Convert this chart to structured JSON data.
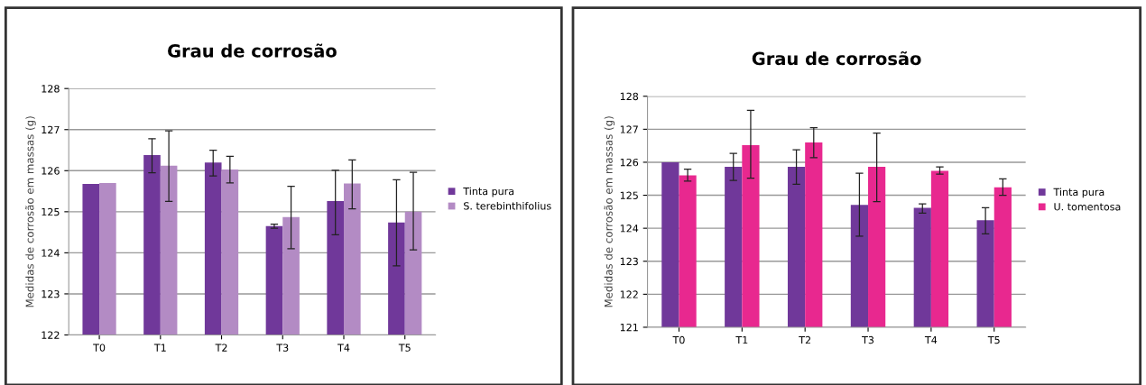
{
  "chart_data": [
    {
      "type": "bar",
      "title": "Grau de corrosão",
      "ylabel": "Medidas de corrosão em massas (g)",
      "categories": [
        "T0",
        "T1",
        "T2",
        "T3",
        "T4",
        "T5"
      ],
      "ylim": [
        122,
        128
      ],
      "yticks": [
        122,
        123,
        124,
        125,
        126,
        127,
        128
      ],
      "grid": "y",
      "legend": "right",
      "series": [
        {
          "name": "Tinta pura",
          "color": "#70389a",
          "values": [
            125.68,
            126.38,
            126.2,
            124.65,
            125.26,
            124.74
          ],
          "errors": [
            null,
            [
              125.95,
              126.78
            ],
            [
              125.87,
              126.5
            ],
            [
              124.6,
              124.7
            ],
            [
              124.44,
              126.01
            ],
            [
              123.68,
              125.78
            ]
          ]
        },
        {
          "name": "S. terebinthifolius",
          "color": "#b38bc4",
          "values": [
            125.7,
            126.12,
            126.03,
            124.87,
            125.69,
            125.0
          ],
          "errors": [
            null,
            [
              125.25,
              126.97
            ],
            [
              125.7,
              126.35
            ],
            [
              124.1,
              125.62
            ],
            [
              125.07,
              126.26
            ],
            [
              124.07,
              125.96
            ]
          ]
        }
      ]
    },
    {
      "type": "bar",
      "title": "Grau de corrosão",
      "ylabel": "Medidas de corrosão em massas (g)",
      "categories": [
        "T0",
        "T1",
        "T2",
        "T3",
        "T4",
        "T5"
      ],
      "ylim": [
        121,
        128
      ],
      "yticks": [
        121,
        122,
        123,
        124,
        125,
        126,
        127,
        128
      ],
      "grid": "y",
      "legend": "right",
      "series": [
        {
          "name": "Tinta pura",
          "color": "#70389a",
          "values": [
            126.0,
            125.86,
            125.86,
            124.71,
            124.62,
            124.24
          ],
          "errors": [
            null,
            [
              125.45,
              126.27
            ],
            [
              125.33,
              126.38
            ],
            [
              123.76,
              125.67
            ],
            [
              124.46,
              124.74
            ],
            [
              123.83,
              124.62
            ]
          ]
        },
        {
          "name": "U. tomentosa",
          "color": "#e8288f",
          "values": [
            125.6,
            126.52,
            126.6,
            125.86,
            125.74,
            125.24
          ],
          "errors": [
            [
              125.43,
              125.79
            ],
            [
              125.52,
              127.57
            ],
            [
              126.14,
              127.05
            ],
            [
              124.81,
              126.88
            ],
            [
              125.64,
              125.86
            ],
            [
              125.0,
              125.5
            ]
          ]
        }
      ]
    }
  ]
}
